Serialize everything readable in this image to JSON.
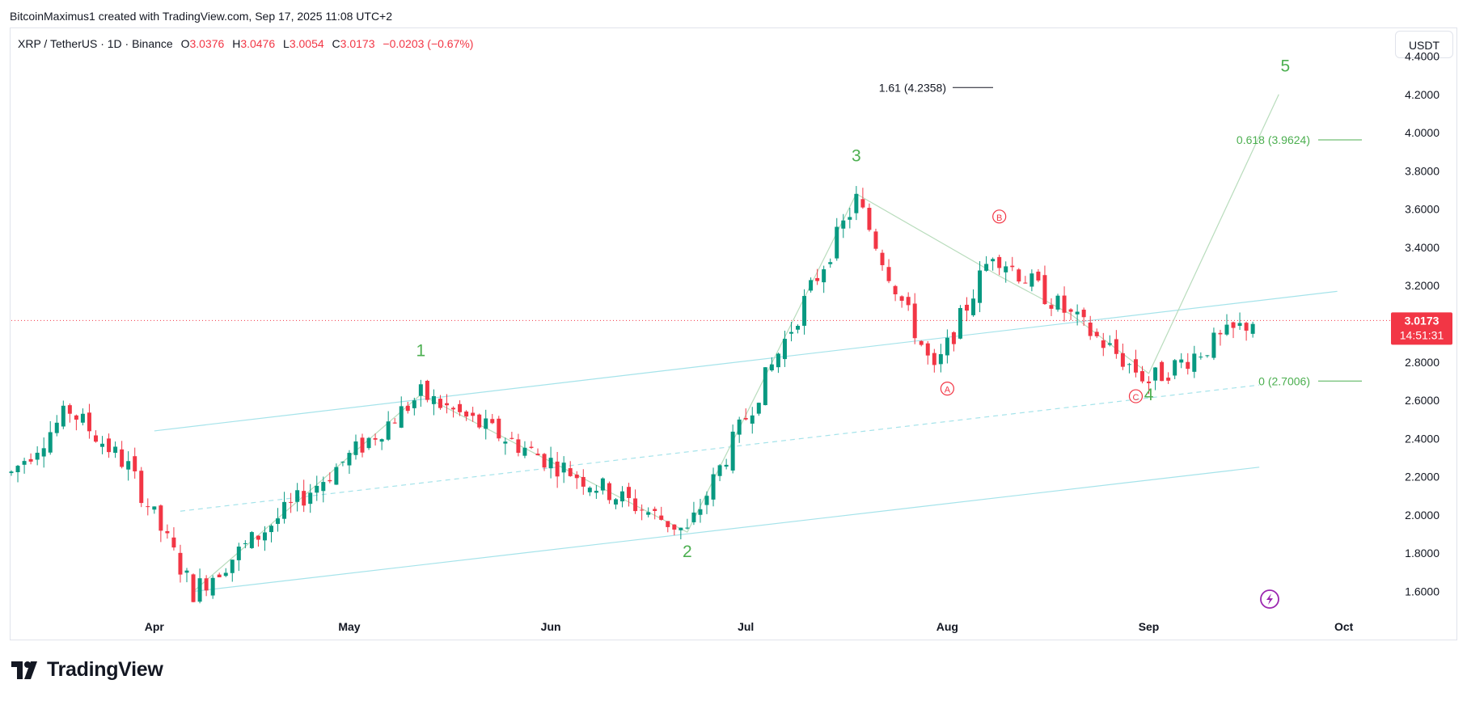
{
  "caption": "BitcoinMaximus1 created with TradingView.com, Sep 17, 2025 11:08 UTC+2",
  "legend": {
    "symbol": "XRP / TetherUS · 1D · Binance",
    "open_label": "O",
    "open": "3.0376",
    "high_label": "H",
    "high": "3.0476",
    "low_label": "L",
    "low": "3.0054",
    "close_label": "C",
    "close": "3.0173",
    "change": "−0.0203 (−0.67%)"
  },
  "currency_button": "USDT",
  "price_tag": {
    "price": "3.0173",
    "countdown": "14:51:31"
  },
  "brand": "TradingView",
  "colors": {
    "up": "#089981",
    "down": "#f23645",
    "wave": "#4caf50",
    "corrective": "#f23645",
    "fib_green": "#4caf50",
    "channel": "#80deea"
  },
  "chart_data": {
    "type": "candlestick",
    "title": "XRP / TetherUS · 1D · Binance",
    "ylim": [
      1.45,
      4.55
    ],
    "y_ticks": [
      "4.4000",
      "4.2000",
      "4.0000",
      "3.8000",
      "3.6000",
      "3.4000",
      "3.2000",
      "3.0000",
      "2.8000",
      "2.6000",
      "2.4000",
      "2.2000",
      "2.0000",
      "1.8000",
      "1.6000"
    ],
    "x_ticks": [
      {
        "label": "Apr",
        "date": "2025-04-01"
      },
      {
        "label": "May",
        "date": "2025-05-01"
      },
      {
        "label": "Jun",
        "date": "2025-06-01"
      },
      {
        "label": "Jul",
        "date": "2025-07-01"
      },
      {
        "label": "Aug",
        "date": "2025-08-01"
      },
      {
        "label": "Sep",
        "date": "2025-09-01"
      },
      {
        "label": "Oct",
        "date": "2025-10-01"
      }
    ],
    "x_range": [
      "2025-03-10",
      "2025-10-10"
    ],
    "grid": false,
    "current_price": 3.0173,
    "pivots": [
      {
        "date": "2025-04-07",
        "close": 1.6
      },
      {
        "date": "2025-05-12",
        "close": 2.63
      },
      {
        "date": "2025-06-22",
        "close": 1.91
      },
      {
        "date": "2025-07-18",
        "close": 3.65
      },
      {
        "date": "2025-07-30",
        "close": 2.74
      },
      {
        "date": "2025-08-08",
        "close": 3.38
      },
      {
        "date": "2025-09-01",
        "close": 2.7
      },
      {
        "date": "2025-09-17",
        "close": 3.0173
      }
    ],
    "wave_labels": [
      {
        "label": "1",
        "date": "2025-05-12",
        "price": 2.83
      },
      {
        "label": "2",
        "date": "2025-06-22",
        "price": 1.78
      },
      {
        "label": "3",
        "date": "2025-07-18",
        "price": 3.85
      },
      {
        "label": "4",
        "date": "2025-09-01",
        "price": 2.6
      },
      {
        "label": "5",
        "date": "2025-09-22",
        "price": 4.32
      }
    ],
    "corrective_labels": [
      {
        "label": "A",
        "date": "2025-08-01",
        "price": 2.64
      },
      {
        "label": "B",
        "date": "2025-08-09",
        "price": 3.54
      },
      {
        "label": "C",
        "date": "2025-08-30",
        "price": 2.6
      }
    ],
    "fib_levels": [
      {
        "label": "1.61 (4.2358)",
        "value": 4.2358,
        "color": "#131722"
      },
      {
        "label": "0.618 (3.9624)",
        "value": 3.9624,
        "color": "#4caf50"
      },
      {
        "label": "0 (2.7006)",
        "value": 2.7006,
        "color": "#4caf50"
      }
    ]
  }
}
